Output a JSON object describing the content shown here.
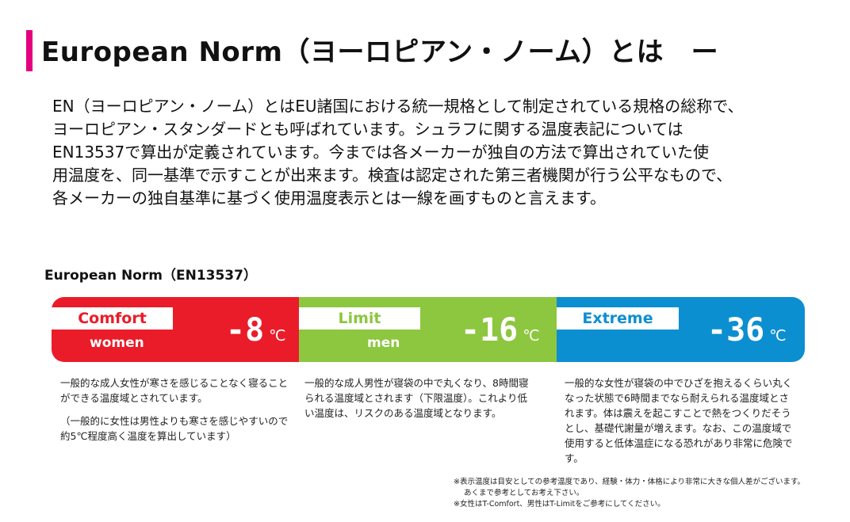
{
  "title": "European Norm（ヨーロピアン・ノーム）とは　ー",
  "intro": [
    "EN（ヨーロピアン・ノーム）とはEU諸国における統一規格として制定されている規格の総称で、",
    "ヨーロピアン・スタンダードとも呼ばれています。シュラフに関する温度表記については",
    "EN13537で算出が定義されています。今までは各メーカーが独自の方法で算出されていた使",
    "用温度を、同一基準で示すことが出来ます。検査は認定された第三者機関が行う公平なもので、",
    "各メーカーの独自基準に基づく使用温度表示とは一線を画すものと言えます。"
  ],
  "section_label": "European Norm（EN13537）",
  "ratings": [
    {
      "tag": "Comfort",
      "who": "women",
      "temp": "-8",
      "unit": "℃",
      "color": "#ea1c29",
      "desc": [
        "一般的な成人女性が寒さを感じることなく寝ることができる温度域とされています。",
        "（一般的に女性は男性よりも寒さを感じやすいので約5℃程度高く温度を算出しています）"
      ]
    },
    {
      "tag": "Limit",
      "who": "men",
      "temp": "-16",
      "unit": "℃",
      "color": "#8dc63f",
      "desc": [
        "一般的な成人男性が寝袋の中で丸くなり、8時間寝られる温度域とされます（下限温度）。これより低い温度は、リスクのある温度域となります。"
      ]
    },
    {
      "tag": "Extreme",
      "who": "",
      "temp": "-36",
      "unit": "℃",
      "color": "#0c8fd0",
      "desc": [
        "一般的な女性が寝袋の中でひざを抱えるくらい丸くなった状態で6時間までなら耐えられる温度域とされます。体は震えを起こすことで熱をつくりだそうとし、基礎代謝量が増えます。なお、この温度域で使用すると低体温症になる恐れがあり非常に危険です。"
      ]
    }
  ],
  "notes": [
    "※表示温度は目安としての参考温度であり、経験・体力・体格により非常に大きな個人差がございます。",
    "あくまで参考としてお考え下さい。",
    "※女性はT-Comfort、男性はT-Limitをご参考にしてください。"
  ]
}
